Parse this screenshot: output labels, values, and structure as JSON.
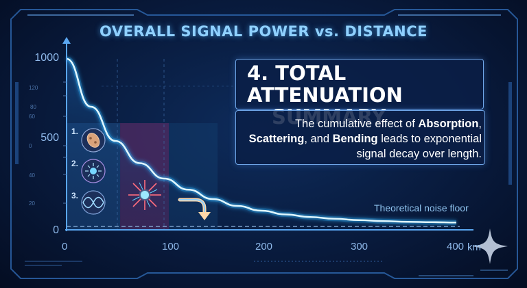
{
  "header": {
    "title": "OVERALL SIGNAL POWER vs. DISTANCE"
  },
  "summary": {
    "heading_line1": "4. TOTAL ATTENUATION",
    "heading_line2": "SUMMARY",
    "body_pre": "The cumulative effect of ",
    "body_term1": "Absorption",
    "body_comma": ",",
    "body_term2": "Scattering",
    "body_and": ", and ",
    "body_term3": "Bending",
    "body_post": " leads to exponential signal decay over length."
  },
  "legend_steps": [
    {
      "number": "1.",
      "icon": "bacteria-absorption-icon"
    },
    {
      "number": "2.",
      "icon": "particle-scattering-icon"
    },
    {
      "number": "3.",
      "icon": "wave-bending-icon"
    }
  ],
  "chart_data": {
    "type": "line",
    "title": "OVERALL SIGNAL POWER vs. DISTANCE",
    "xlabel": "",
    "x_unit": "km",
    "ylabel": "",
    "xlim": [
      0,
      400
    ],
    "ylim": [
      0,
      1000
    ],
    "x_ticks": [
      "0",
      "100",
      "200",
      "300",
      "400"
    ],
    "y_ticks": [
      "0",
      "500",
      "1000"
    ],
    "y_minor_ticks": [
      "20",
      "40",
      "0",
      "60",
      "80",
      "120"
    ],
    "series": [
      {
        "x": [
          0,
          25,
          50,
          75,
          100,
          125,
          150,
          175,
          200,
          225,
          250,
          275,
          300,
          325,
          350,
          375,
          400
        ],
        "values": [
          1000,
          720,
          520,
          390,
          300,
          235,
          180,
          140,
          112,
          90,
          75,
          65,
          57,
          51,
          47,
          45,
          43
        ]
      }
    ],
    "noise_floor": {
      "label": "Theoretical noise floor",
      "value": 20
    },
    "highlight_regions": [
      {
        "x_start": 0,
        "x_end": 55,
        "color": "#1f4f86"
      },
      {
        "x_start": 55,
        "x_end": 105,
        "color": "#6b2f6e"
      },
      {
        "x_start": 105,
        "x_end": 155,
        "color": "#123a6a"
      }
    ],
    "grid": true,
    "line_color": "#3fd4ff"
  }
}
